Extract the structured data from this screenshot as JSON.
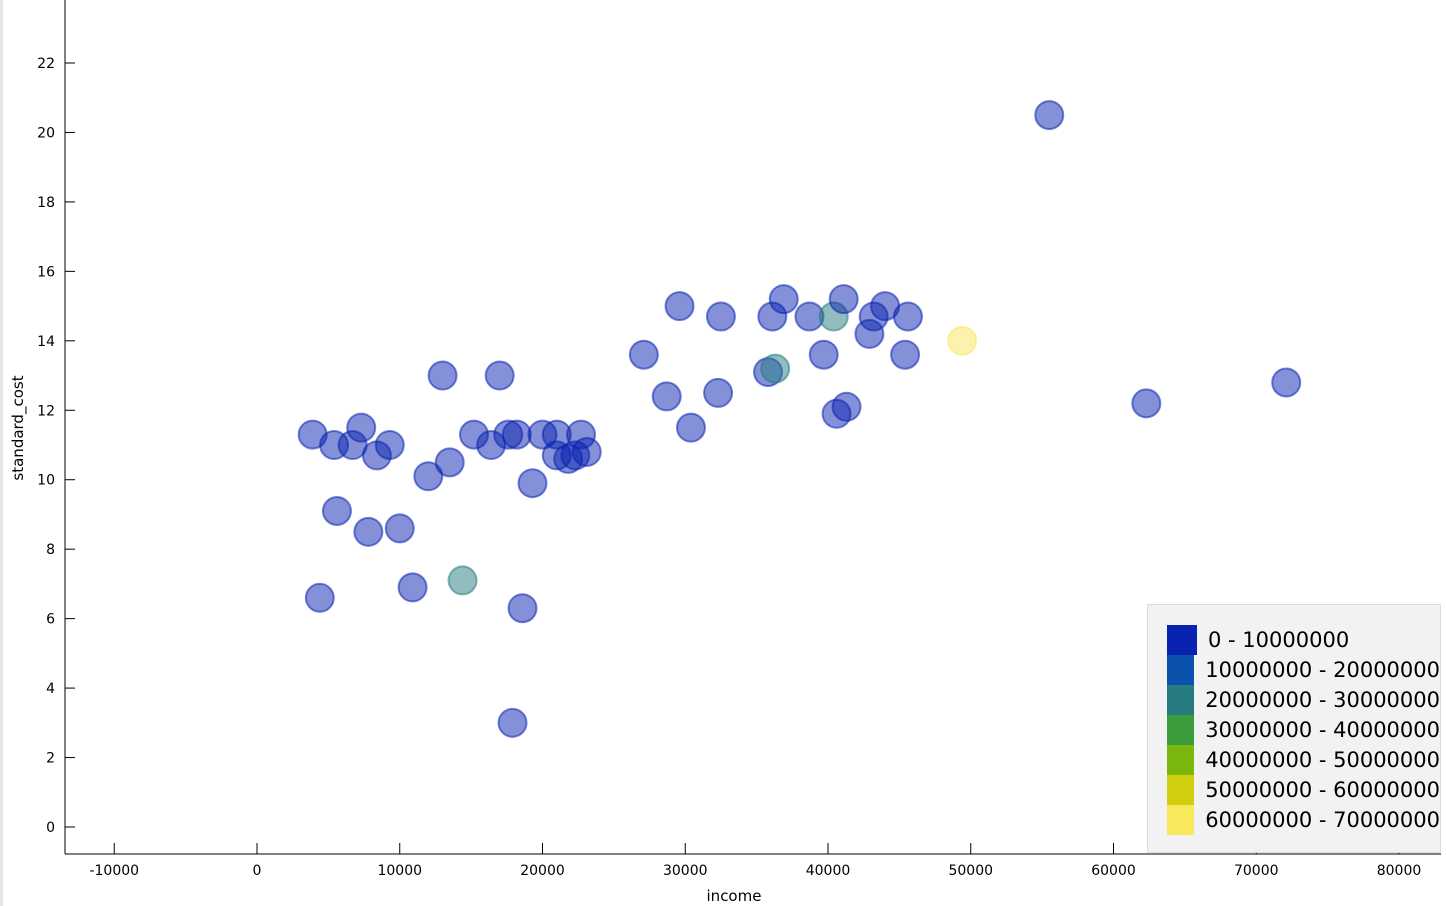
{
  "chart_data": {
    "type": "scatter",
    "xlabel": "income",
    "ylabel": "standard_cost",
    "xlim": [
      -13000,
      83000
    ],
    "ylim": [
      -0.8,
      23.8
    ],
    "x_ticks": [
      -10000,
      0,
      10000,
      20000,
      30000,
      40000,
      50000,
      60000,
      70000,
      80000
    ],
    "y_ticks": [
      0,
      2,
      4,
      6,
      8,
      10,
      12,
      14,
      16,
      18,
      20,
      22
    ],
    "grid": false,
    "legend_position": "bottom-right",
    "legend": [
      {
        "label": "0 - 10000000",
        "color": "#0a22b0"
      },
      {
        "label": "10000000 - 20000000",
        "color": "#0b52ac"
      },
      {
        "label": "20000000 - 30000000",
        "color": "#257b80"
      },
      {
        "label": "30000000 - 40000000",
        "color": "#3c9b3a"
      },
      {
        "label": "40000000 - 50000000",
        "color": "#7bb70c"
      },
      {
        "label": "50000000 - 60000000",
        "color": "#cfce0f"
      },
      {
        "label": "60000000 - 70000000",
        "color": "#f8e85c"
      }
    ],
    "points": [
      {
        "x": 3900,
        "y": 11.3,
        "color": "#0a22b0"
      },
      {
        "x": 5400,
        "y": 11.0,
        "color": "#0a22b0"
      },
      {
        "x": 6700,
        "y": 11.0,
        "color": "#0a22b0"
      },
      {
        "x": 7300,
        "y": 11.5,
        "color": "#0a22b0"
      },
      {
        "x": 8400,
        "y": 10.7,
        "color": "#0a22b0"
      },
      {
        "x": 9300,
        "y": 11.0,
        "color": "#0a22b0"
      },
      {
        "x": 5600,
        "y": 9.1,
        "color": "#0a22b0"
      },
      {
        "x": 7800,
        "y": 8.5,
        "color": "#0a22b0"
      },
      {
        "x": 10000,
        "y": 8.6,
        "color": "#0a22b0"
      },
      {
        "x": 4400,
        "y": 6.6,
        "color": "#0a22b0"
      },
      {
        "x": 10900,
        "y": 6.9,
        "color": "#0a22b0"
      },
      {
        "x": 12000,
        "y": 10.1,
        "color": "#0a22b0"
      },
      {
        "x": 13500,
        "y": 10.5,
        "color": "#0a22b0"
      },
      {
        "x": 13000,
        "y": 13.0,
        "color": "#0a22b0"
      },
      {
        "x": 14400,
        "y": 7.1,
        "color": "#257b80"
      },
      {
        "x": 15200,
        "y": 11.3,
        "color": "#0a22b0"
      },
      {
        "x": 16400,
        "y": 11.0,
        "color": "#0a22b0"
      },
      {
        "x": 17000,
        "y": 13.0,
        "color": "#0a22b0"
      },
      {
        "x": 17600,
        "y": 11.3,
        "color": "#0a22b0"
      },
      {
        "x": 18200,
        "y": 11.3,
        "color": "#0a22b0"
      },
      {
        "x": 17900,
        "y": 3.0,
        "color": "#0a22b0"
      },
      {
        "x": 18600,
        "y": 6.3,
        "color": "#0a22b0"
      },
      {
        "x": 19300,
        "y": 9.9,
        "color": "#0a22b0"
      },
      {
        "x": 20000,
        "y": 11.3,
        "color": "#0a22b0"
      },
      {
        "x": 21000,
        "y": 11.3,
        "color": "#0a22b0"
      },
      {
        "x": 21000,
        "y": 10.7,
        "color": "#0a22b0"
      },
      {
        "x": 21800,
        "y": 10.6,
        "color": "#0a22b0"
      },
      {
        "x": 22300,
        "y": 10.7,
        "color": "#0a22b0"
      },
      {
        "x": 22700,
        "y": 11.3,
        "color": "#0a22b0"
      },
      {
        "x": 23100,
        "y": 10.8,
        "color": "#0a22b0"
      },
      {
        "x": 27100,
        "y": 13.6,
        "color": "#0a22b0"
      },
      {
        "x": 28700,
        "y": 12.4,
        "color": "#0a22b0"
      },
      {
        "x": 29600,
        "y": 15.0,
        "color": "#0a22b0"
      },
      {
        "x": 30400,
        "y": 11.5,
        "color": "#0a22b0"
      },
      {
        "x": 32300,
        "y": 12.5,
        "color": "#0a22b0"
      },
      {
        "x": 32500,
        "y": 14.7,
        "color": "#0a22b0"
      },
      {
        "x": 35800,
        "y": 13.1,
        "color": "#0a22b0"
      },
      {
        "x": 36300,
        "y": 13.2,
        "color": "#257b80"
      },
      {
        "x": 36100,
        "y": 14.7,
        "color": "#0a22b0"
      },
      {
        "x": 36900,
        "y": 15.2,
        "color": "#0a22b0"
      },
      {
        "x": 38700,
        "y": 14.7,
        "color": "#0a22b0"
      },
      {
        "x": 39700,
        "y": 13.6,
        "color": "#0a22b0"
      },
      {
        "x": 40400,
        "y": 14.7,
        "color": "#257b80"
      },
      {
        "x": 40600,
        "y": 11.9,
        "color": "#0a22b0"
      },
      {
        "x": 41300,
        "y": 12.1,
        "color": "#0a22b0"
      },
      {
        "x": 41100,
        "y": 15.2,
        "color": "#0a22b0"
      },
      {
        "x": 42900,
        "y": 14.2,
        "color": "#0a22b0"
      },
      {
        "x": 43200,
        "y": 14.7,
        "color": "#0a22b0"
      },
      {
        "x": 44000,
        "y": 15.0,
        "color": "#0a22b0"
      },
      {
        "x": 45400,
        "y": 13.6,
        "color": "#0a22b0"
      },
      {
        "x": 45600,
        "y": 14.7,
        "color": "#0a22b0"
      },
      {
        "x": 49400,
        "y": 14.0,
        "color": "#f8e85c"
      },
      {
        "x": 55500,
        "y": 20.5,
        "color": "#0a22b0"
      },
      {
        "x": 62300,
        "y": 12.2,
        "color": "#0a22b0"
      },
      {
        "x": 72100,
        "y": 12.8,
        "color": "#0a22b0"
      }
    ]
  }
}
